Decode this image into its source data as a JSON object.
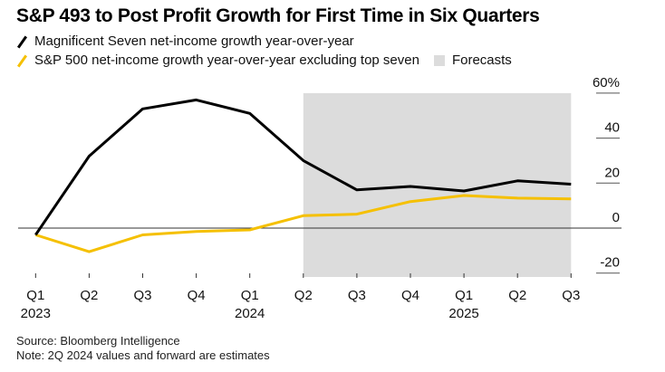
{
  "title": "S&P 493 to Post Profit Growth for First Time in Six Quarters",
  "legend": {
    "series1": "Magnificent Seven net-income growth year-over-year",
    "series2": "S&P 500 net-income growth year-over-year excluding top seven",
    "forecasts": "Forecasts"
  },
  "footer": {
    "source": "Source: Bloomberg Intelligence",
    "note": "Note: 2Q 2024 values and forward are estimates"
  },
  "chart_data": {
    "type": "line",
    "title": "S&P 493 to Post Profit Growth for First Time in Six Quarters",
    "xlabel": "",
    "ylabel": "",
    "categories": [
      "Q1 2023",
      "Q2 2023",
      "Q3 2023",
      "Q4 2023",
      "Q1 2024",
      "Q2 2024",
      "Q3 2024",
      "Q4 2024",
      "Q1 2025",
      "Q2 2025",
      "Q3 2025"
    ],
    "x_tick_labels": [
      {
        "quarter": "Q1",
        "year": "2023"
      },
      {
        "quarter": "Q2",
        "year": ""
      },
      {
        "quarter": "Q3",
        "year": ""
      },
      {
        "quarter": "Q4",
        "year": ""
      },
      {
        "quarter": "Q1",
        "year": "2024"
      },
      {
        "quarter": "Q2",
        "year": ""
      },
      {
        "quarter": "Q3",
        "year": ""
      },
      {
        "quarter": "Q4",
        "year": ""
      },
      {
        "quarter": "Q1",
        "year": "2025"
      },
      {
        "quarter": "Q2",
        "year": ""
      },
      {
        "quarter": "Q3",
        "year": ""
      }
    ],
    "series": [
      {
        "name": "Magnificent Seven net-income growth year-over-year",
        "color": "#000000",
        "values": [
          -3,
          32,
          53,
          57,
          51,
          30,
          17,
          18.5,
          16.5,
          21,
          19.5
        ]
      },
      {
        "name": "S&P 500 net-income growth year-over-year excluding top seven",
        "color": "#f5c000",
        "values": [
          -3,
          -10.5,
          -3,
          -1.5,
          -0.8,
          5.5,
          6.2,
          11.8,
          14.5,
          13.3,
          13
        ]
      }
    ],
    "forecast_region": {
      "start": "Q2 2024",
      "end": "Q3 2025",
      "label": "Forecasts",
      "color": "#dcdcdc"
    },
    "y_ticks": [
      60,
      40,
      20,
      0,
      -20
    ],
    "y_tick_labels": [
      "60%",
      "40",
      "20",
      "0",
      "-20"
    ],
    "ylim": [
      -20,
      60
    ],
    "grid": false,
    "y_axis_side": "right",
    "legend_position": "top-left"
  }
}
